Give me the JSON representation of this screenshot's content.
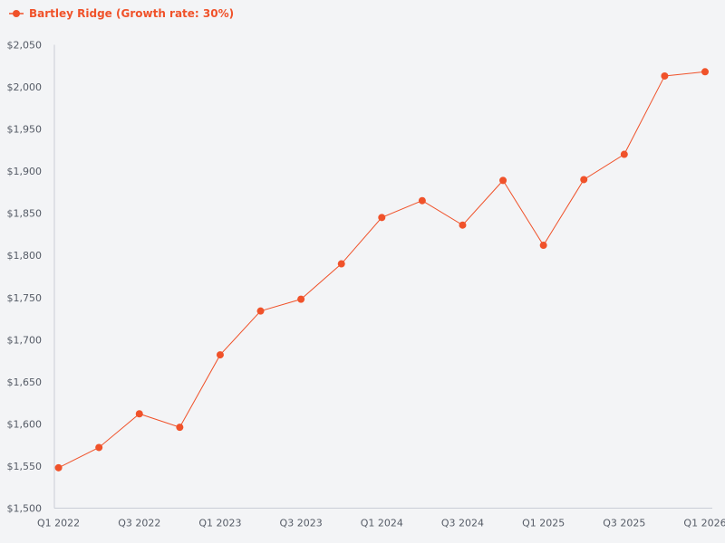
{
  "chart_data": {
    "type": "line",
    "title": "",
    "xlabel": "",
    "ylabel": "",
    "ylim": [
      1500,
      2050
    ],
    "y_ticks": [
      "$1,500",
      "$1,550",
      "$1,600",
      "$1,650",
      "$1,700",
      "$1,750",
      "$1,800",
      "$1,850",
      "$1,900",
      "$1,950",
      "$2,000",
      "$2,050"
    ],
    "y_tick_values": [
      1500,
      1550,
      1600,
      1650,
      1700,
      1750,
      1800,
      1850,
      1900,
      1950,
      2000,
      2050
    ],
    "categories": [
      "Q1 2022",
      "Q2 2022",
      "Q3 2022",
      "Q4 2022",
      "Q1 2023",
      "Q2 2023",
      "Q3 2023",
      "Q4 2023",
      "Q1 2024",
      "Q2 2024",
      "Q3 2024",
      "Q4 2024",
      "Q1 2025",
      "Q2 2025",
      "Q3 2025",
      "Q4 2025",
      "Q1 2026"
    ],
    "x_tick_labels": [
      "Q1 2022",
      "Q3 2022",
      "Q1 2023",
      "Q3 2023",
      "Q1 2024",
      "Q3 2024",
      "Q1 2025",
      "Q3 2025",
      "Q1 2026"
    ],
    "series": [
      {
        "name": "Bartley Ridge (Growth rate: 30%)",
        "color": "#f0522a",
        "values": [
          1548,
          1572,
          1612,
          1596,
          1682,
          1734,
          1748,
          1790,
          1845,
          1865,
          1836,
          1889,
          1812,
          1890,
          1920,
          2013,
          2018
        ]
      }
    ],
    "legend_position": "top-left",
    "grid": false
  }
}
